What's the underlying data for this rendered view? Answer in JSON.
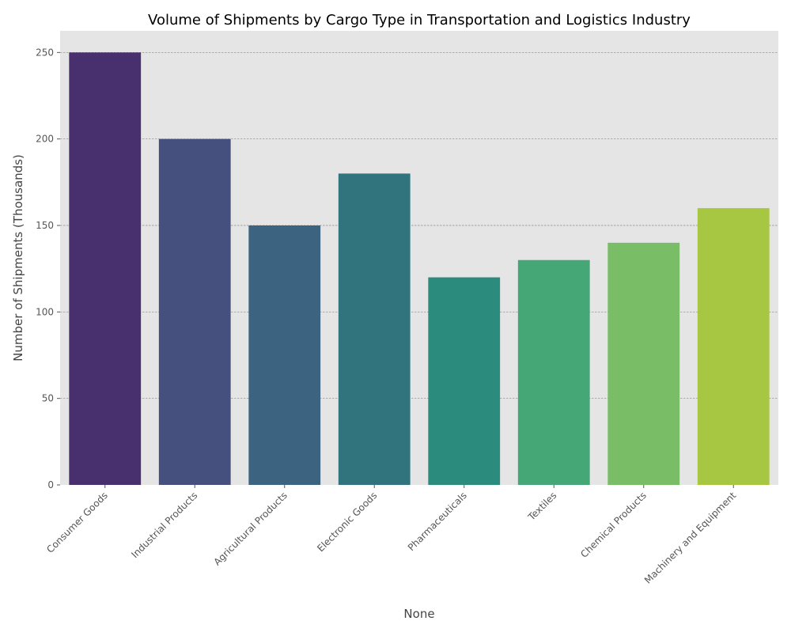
{
  "chart_data": {
    "type": "bar",
    "title": "Volume of Shipments by Cargo Type in Transportation and Logistics Industry",
    "xlabel": "None",
    "ylabel": "Number of Shipments (Thousands)",
    "categories": [
      "Consumer Goods",
      "Industrial Products",
      "Agricultural Products",
      "Electronic Goods",
      "Pharmaceuticals",
      "Textiles",
      "Chemical Products",
      "Machinery and Equipment"
    ],
    "values": [
      250,
      200,
      150,
      180,
      120,
      130,
      140,
      160
    ],
    "colors": [
      "#482f6e",
      "#46507e",
      "#3c6480",
      "#32747e",
      "#2b8c7d",
      "#45a775",
      "#79bd66",
      "#a7c641"
    ],
    "ylim": [
      0,
      262.5
    ],
    "yticks": [
      0,
      50,
      100,
      150,
      200,
      250
    ],
    "grid": true,
    "plot_background": "#e5e5e5"
  }
}
